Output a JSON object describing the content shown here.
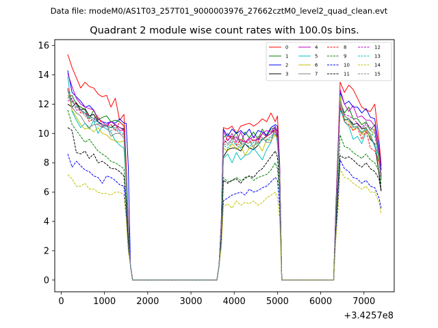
{
  "chart_data": {
    "type": "line",
    "suptitle": "Data file: modeM0/AS1T03_257T01_9000003976_27662cztM0_level2_quad_clean.evt",
    "title": "Quadrant 2 module wise count rates with 100.0s bins.",
    "xlabel": "",
    "ylabel": "",
    "x_offset_label": "+3.4257e8",
    "xlim": [
      -150,
      7700
    ],
    "ylim": [
      -0.8,
      16.4
    ],
    "xticks": [
      0,
      1000,
      2000,
      3000,
      4000,
      5000,
      6000,
      7000
    ],
    "yticks": [
      0,
      2,
      4,
      6,
      8,
      10,
      12,
      14,
      16
    ],
    "xtick_labels": [
      "0",
      "1000",
      "2000",
      "3000",
      "4000",
      "5000",
      "6000",
      "7000"
    ],
    "ytick_labels": [
      "0",
      "2",
      "4",
      "6",
      "8",
      "10",
      "12",
      "14",
      "16"
    ],
    "legend_position": "top-right",
    "x": [
      150,
      250,
      350,
      450,
      550,
      650,
      750,
      850,
      950,
      1050,
      1150,
      1250,
      1350,
      1450,
      1500,
      1550,
      1600,
      1650,
      3600,
      3650,
      3700,
      3750,
      3850,
      3950,
      4050,
      4150,
      4250,
      4350,
      4450,
      4550,
      4650,
      4750,
      4850,
      4950,
      5000,
      5050,
      5100,
      6300,
      6350,
      6400,
      6450,
      6550,
      6650,
      6750,
      6850,
      6950,
      7050,
      7150,
      7250,
      7350,
      7400
    ],
    "series": [
      {
        "name": "0",
        "color": "#ff0000",
        "dash": "solid",
        "values": [
          15.4,
          14.5,
          13.8,
          13.1,
          13.5,
          13.2,
          13.1,
          12.7,
          12.5,
          12.6,
          11.8,
          12.4,
          10.9,
          11.3,
          8.0,
          4.0,
          1.0,
          0,
          0,
          1.0,
          4.0,
          10.4,
          10.3,
          10.5,
          10.0,
          10.5,
          10.6,
          10.7,
          10.5,
          10.7,
          11.0,
          10.8,
          11.4,
          10.8,
          11.2,
          8.0,
          0,
          0,
          5.0,
          9.0,
          13.5,
          12.8,
          13.3,
          13.0,
          12.4,
          11.8,
          11.6,
          11.5,
          12.0,
          9.5,
          7.8
        ]
      },
      {
        "name": "1",
        "color": "#008000",
        "dash": "solid",
        "values": [
          12.4,
          12.6,
          12.0,
          11.8,
          11.6,
          11.0,
          11.6,
          10.9,
          11.1,
          11.2,
          10.8,
          10.9,
          10.8,
          10.5,
          7.6,
          3.8,
          1.0,
          0,
          0,
          1.0,
          3.8,
          9.7,
          10.0,
          9.6,
          10.1,
          9.3,
          10.1,
          9.7,
          10.1,
          9.6,
          10.3,
          9.8,
          10.3,
          10.4,
          10.2,
          7.6,
          0,
          0,
          4.6,
          8.4,
          12.2,
          11.4,
          11.8,
          11.0,
          11.0,
          10.6,
          10.8,
          10.2,
          10.6,
          8.4,
          7.2
        ]
      },
      {
        "name": "2",
        "color": "#0000ff",
        "dash": "solid",
        "values": [
          14.3,
          12.8,
          12.5,
          12.2,
          11.8,
          11.9,
          11.6,
          11.0,
          10.8,
          10.7,
          10.8,
          10.7,
          11.0,
          10.7,
          10.7,
          7.8,
          1.0,
          0,
          0,
          1.0,
          3.8,
          10.3,
          9.8,
          10.3,
          10.0,
          10.2,
          9.9,
          10.3,
          9.7,
          10.2,
          10.1,
          9.9,
          10.4,
          10.6,
          10.5,
          7.8,
          0,
          0,
          4.8,
          8.8,
          12.8,
          12.0,
          12.2,
          11.8,
          11.8,
          11.4,
          11.7,
          11.1,
          11.0,
          9.0,
          7.5
        ]
      },
      {
        "name": "3",
        "color": "#000000",
        "dash": "solid",
        "values": [
          12.0,
          11.8,
          12.1,
          11.6,
          11.7,
          11.2,
          11.3,
          10.8,
          10.6,
          10.5,
          10.4,
          10.6,
          10.4,
          10.3,
          7.4,
          3.6,
          1.0,
          0,
          0,
          1.0,
          3.6,
          8.4,
          8.9,
          9.0,
          9.0,
          8.8,
          9.3,
          9.0,
          8.9,
          9.2,
          9.6,
          9.8,
          10.0,
          10.3,
          9.8,
          7.4,
          0,
          0,
          4.5,
          8.2,
          11.8,
          10.9,
          11.0,
          10.6,
          10.7,
          10.3,
          10.4,
          9.6,
          9.3,
          7.2,
          6.1
        ]
      },
      {
        "name": "4",
        "color": "#bf00bf",
        "dash": "solid",
        "values": [
          14.1,
          13.2,
          12.4,
          12.0,
          11.8,
          11.7,
          11.6,
          11.0,
          10.8,
          10.5,
          10.8,
          10.6,
          10.2,
          10.2,
          7.4,
          3.6,
          1.0,
          0,
          0,
          1.0,
          3.8,
          10.2,
          9.5,
          10.0,
          9.4,
          10.1,
          9.4,
          9.7,
          9.5,
          9.6,
          10.0,
          10.2,
          10.1,
          10.5,
          10.1,
          7.6,
          0,
          0,
          4.8,
          8.6,
          13.0,
          12.0,
          11.5,
          11.9,
          11.1,
          11.2,
          10.9,
          10.9,
          10.5,
          8.6,
          7.1
        ]
      },
      {
        "name": "5",
        "color": "#00bfbf",
        "dash": "solid",
        "values": [
          13.9,
          11.5,
          10.9,
          10.4,
          10.7,
          10.3,
          10.9,
          10.0,
          10.5,
          10.3,
          10.1,
          9.5,
          9.2,
          9.0,
          6.6,
          3.2,
          1.0,
          0,
          0,
          1.0,
          3.4,
          8.3,
          8.6,
          8.0,
          8.7,
          8.2,
          8.5,
          8.6,
          9.0,
          8.6,
          8.2,
          8.9,
          9.4,
          10.5,
          9.3,
          7.0,
          0,
          0,
          4.2,
          7.8,
          12.6,
          10.8,
          10.5,
          9.6,
          9.8,
          9.3,
          10.1,
          9.8,
          9.1,
          8.0,
          6.8
        ]
      },
      {
        "name": "6",
        "color": "#bfbf00",
        "dash": "solid",
        "values": [
          13.0,
          11.6,
          11.1,
          10.6,
          10.3,
          10.4,
          10.1,
          10.4,
          10.0,
          9.9,
          9.6,
          9.5,
          9.4,
          9.5,
          7.0,
          3.4,
          1.0,
          0,
          0,
          1.0,
          3.6,
          9.0,
          8.8,
          9.3,
          8.9,
          9.2,
          8.5,
          9.0,
          9.2,
          9.3,
          8.8,
          9.6,
          9.5,
          9.9,
          9.6,
          7.2,
          0,
          0,
          4.4,
          8.0,
          12.5,
          11.0,
          10.8,
          10.2,
          10.5,
          9.9,
          10.3,
          9.7,
          10.3,
          8.0,
          6.8
        ]
      },
      {
        "name": "7",
        "color": "#808080",
        "dash": "solid",
        "values": [
          13.0,
          11.8,
          11.4,
          11.2,
          10.7,
          10.4,
          10.6,
          10.6,
          10.4,
          10.6,
          9.8,
          10.0,
          10.0,
          9.7,
          7.1,
          3.4,
          1.0,
          0,
          0,
          1.0,
          3.6,
          9.6,
          9.3,
          9.6,
          9.8,
          9.3,
          9.3,
          9.6,
          9.0,
          9.8,
          9.7,
          9.4,
          9.4,
          10.4,
          9.6,
          7.2,
          0,
          0,
          4.6,
          8.2,
          12.2,
          11.2,
          11.0,
          10.4,
          10.5,
          10.0,
          10.4,
          9.9,
          9.2,
          8.4,
          6.8
        ]
      },
      {
        "name": "8",
        "color": "#ff0000",
        "dash": "dashed",
        "values": [
          13.1,
          12.2,
          12.0,
          11.4,
          11.4,
          10.8,
          11.0,
          11.2,
          10.6,
          10.5,
          10.6,
          10.2,
          10.8,
          10.5,
          7.6,
          3.6,
          1.0,
          0,
          0,
          1.0,
          3.6,
          9.2,
          9.8,
          9.8,
          9.2,
          9.6,
          9.4,
          9.4,
          9.6,
          9.4,
          10.0,
          9.8,
          10.0,
          10.2,
          9.6,
          7.2,
          0,
          0,
          4.4,
          8.0,
          11.8,
          10.8,
          10.6,
          10.2,
          10.4,
          9.6,
          10.2,
          9.0,
          8.8,
          8.0,
          6.9
        ]
      },
      {
        "name": "9",
        "color": "#008000",
        "dash": "dashed",
        "values": [
          11.6,
          10.6,
          10.2,
          9.8,
          9.4,
          9.6,
          9.2,
          8.8,
          8.6,
          8.4,
          8.1,
          8.0,
          7.8,
          7.6,
          5.6,
          2.8,
          1.0,
          0,
          0,
          1.0,
          2.8,
          7.0,
          6.7,
          6.8,
          7.0,
          6.8,
          6.9,
          7.1,
          6.8,
          7.0,
          7.1,
          7.2,
          7.5,
          8.0,
          7.6,
          5.8,
          0,
          0,
          3.6,
          6.4,
          9.9,
          9.1,
          9.0,
          8.7,
          8.5,
          8.3,
          8.6,
          8.2,
          8.0,
          7.4,
          6.5
        ]
      },
      {
        "name": "10",
        "color": "#0000ff",
        "dash": "dashed",
        "values": [
          8.6,
          7.7,
          8.1,
          7.8,
          7.5,
          7.4,
          7.1,
          7.0,
          6.6,
          7.1,
          7.0,
          6.8,
          6.5,
          6.4,
          4.6,
          2.2,
          1.0,
          0,
          0,
          1.0,
          2.4,
          5.4,
          5.6,
          5.8,
          5.9,
          6.0,
          5.8,
          6.2,
          6.0,
          6.1,
          6.3,
          6.4,
          6.7,
          7.0,
          6.8,
          5.0,
          0,
          0,
          3.0,
          5.4,
          8.2,
          7.6,
          7.4,
          7.0,
          6.9,
          6.6,
          6.8,
          6.4,
          6.3,
          5.6,
          4.9
        ]
      },
      {
        "name": "11",
        "color": "#000000",
        "dash": "dashed",
        "values": [
          10.4,
          10.2,
          8.7,
          8.6,
          8.8,
          8.3,
          8.6,
          8.0,
          8.1,
          7.9,
          7.6,
          7.6,
          7.4,
          7.1,
          5.4,
          2.6,
          1.0,
          0,
          0,
          1.0,
          2.8,
          6.8,
          6.6,
          6.8,
          6.9,
          6.6,
          7.0,
          7.1,
          7.0,
          7.4,
          7.6,
          8.0,
          8.4,
          8.8,
          8.4,
          6.4,
          0,
          0,
          3.6,
          6.4,
          8.5,
          8.3,
          8.4,
          8.2,
          7.9,
          7.7,
          8.0,
          7.6,
          7.4,
          6.9,
          6.0
        ]
      },
      {
        "name": "12",
        "color": "#bf00bf",
        "dash": "dashed",
        "values": [
          12.2,
          12.4,
          11.6,
          11.6,
          11.4,
          11.2,
          11.0,
          10.8,
          10.5,
          10.6,
          10.8,
          10.6,
          10.4,
          10.2,
          7.4,
          3.6,
          1.0,
          0,
          0,
          1.0,
          3.6,
          9.4,
          9.5,
          9.8,
          9.7,
          9.5,
          9.4,
          9.6,
          9.8,
          9.5,
          10.0,
          9.8,
          10.0,
          10.4,
          9.8,
          7.4,
          0,
          0,
          4.6,
          8.4,
          12.0,
          11.3,
          11.2,
          11.0,
          10.7,
          10.4,
          10.7,
          10.4,
          10.2,
          8.6,
          7.0
        ]
      },
      {
        "name": "13",
        "color": "#00bfbf",
        "dash": "dashed",
        "values": [
          12.9,
          12.1,
          11.9,
          11.6,
          11.4,
          11.0,
          11.1,
          10.7,
          10.6,
          10.5,
          10.4,
          10.4,
          10.1,
          10.0,
          7.2,
          3.5,
          1.0,
          0,
          0,
          1.0,
          3.5,
          9.2,
          9.0,
          9.4,
          9.2,
          9.0,
          9.3,
          9.1,
          9.4,
          9.2,
          9.6,
          9.5,
          9.7,
          10.0,
          9.6,
          7.2,
          0,
          0,
          4.4,
          8.1,
          11.6,
          11.0,
          10.9,
          10.5,
          10.4,
          10.1,
          10.3,
          10.0,
          9.8,
          8.3,
          6.9
        ]
      },
      {
        "name": "14",
        "color": "#bfbf00",
        "dash": "dashed",
        "values": [
          7.2,
          6.9,
          6.4,
          6.4,
          6.6,
          6.2,
          6.2,
          6.0,
          5.9,
          5.9,
          5.8,
          6.0,
          6.0,
          5.8,
          4.2,
          2.0,
          1.0,
          0,
          0,
          1.0,
          2.2,
          5.0,
          5.2,
          4.9,
          5.4,
          5.1,
          5.3,
          5.2,
          5.4,
          5.1,
          5.3,
          5.6,
          5.8,
          6.0,
          5.6,
          4.2,
          0,
          0,
          2.8,
          4.8,
          7.6,
          7.0,
          6.9,
          6.6,
          6.4,
          6.2,
          6.4,
          6.0,
          6.0,
          5.3,
          4.5
        ]
      },
      {
        "name": "15",
        "color": "#808080",
        "dash": "dashed",
        "values": [
          12.6,
          12.2,
          11.8,
          11.6,
          11.2,
          11.0,
          10.9,
          10.6,
          10.4,
          10.5,
          10.2,
          10.3,
          10.0,
          9.9,
          7.2,
          3.5,
          1.0,
          0,
          0,
          1.0,
          3.5,
          9.3,
          9.2,
          9.5,
          9.3,
          9.2,
          9.4,
          9.3,
          9.5,
          9.3,
          9.7,
          9.6,
          9.8,
          10.1,
          9.7,
          7.3,
          0,
          0,
          4.5,
          8.3,
          12.0,
          11.2,
          11.0,
          10.7,
          10.6,
          10.3,
          10.6,
          10.2,
          10.0,
          8.5,
          7.0
        ]
      }
    ]
  }
}
